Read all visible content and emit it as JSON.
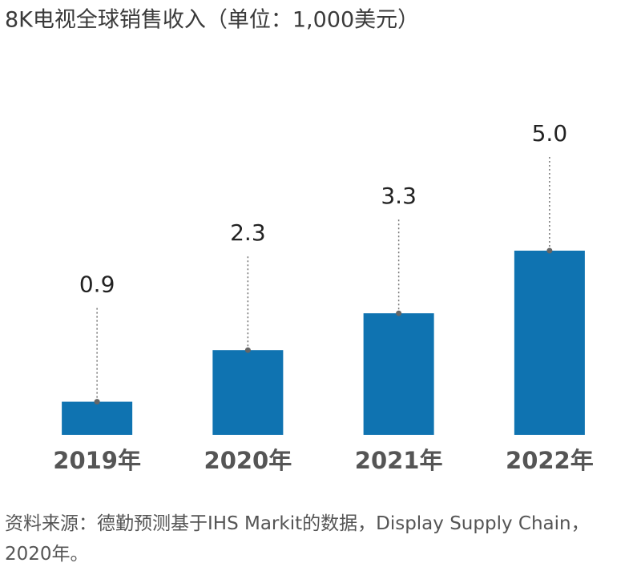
{
  "chart_data": {
    "type": "bar",
    "title": "8K电视全球销售收入（单位：1,000美元）",
    "categories": [
      "2019年",
      "2020年",
      "2021年",
      "2022年"
    ],
    "values": [
      0.9,
      2.3,
      3.3,
      5.0
    ],
    "value_labels": [
      "0.9",
      "2.3",
      "3.3",
      "5.0"
    ],
    "color": "#0f73b1",
    "source": "资料来源：德勤预测基于IHS Markit的数据，Display Supply Chain，2020年。"
  }
}
